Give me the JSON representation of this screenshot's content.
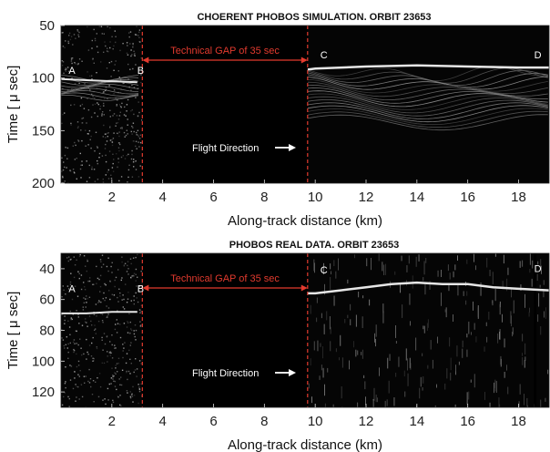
{
  "colors": {
    "gap_marker": "#e23a2e",
    "background_radar": "#050505",
    "echo": "#e6e6e6"
  },
  "chart_data": [
    {
      "type": "heatmap",
      "title": "CHOERENT PHOBOS SIMULATION. ORBIT 23653",
      "xlabel": "Along-track distance (km)",
      "ylabel": "Time [ μ sec]",
      "xlim": [
        0,
        19.2
      ],
      "ylim": [
        200,
        50
      ],
      "x_ticks": [
        2,
        4,
        6,
        8,
        10,
        12,
        14,
        16,
        18
      ],
      "y_ticks": [
        50,
        100,
        150,
        200
      ],
      "gap": {
        "start_km": 3.2,
        "end_km": 9.7,
        "label": "Technical GAP of 35 sec"
      },
      "flight_direction_label": "Flight Direction",
      "points": [
        {
          "label": "A",
          "x": 0.3,
          "y": 96
        },
        {
          "label": "B",
          "x": 3.0,
          "y": 96
        },
        {
          "label": "C",
          "x": 10.2,
          "y": 81
        },
        {
          "label": "D",
          "x": 18.9,
          "y": 81
        }
      ],
      "echo_trace": {
        "x": [
          0,
          1,
          2,
          3,
          9.7,
          10,
          12,
          14,
          16,
          18,
          19.2
        ],
        "y": [
          101,
          102,
          103,
          104,
          92,
          91,
          89,
          88,
          89,
          90,
          90
        ]
      }
    },
    {
      "type": "heatmap",
      "title": "PHOBOS REAL DATA. ORBIT 23653",
      "xlabel": "Along-track distance (km)",
      "ylabel": "Time [ μ sec]",
      "xlim": [
        0,
        19.2
      ],
      "ylim": [
        130,
        30
      ],
      "x_ticks": [
        2,
        4,
        6,
        8,
        10,
        12,
        14,
        16,
        18
      ],
      "y_ticks": [
        40,
        60,
        80,
        100,
        120
      ],
      "gap": {
        "start_km": 3.2,
        "end_km": 9.7,
        "label": "Technical GAP of 35 sec"
      },
      "flight_direction_label": "Flight Direction",
      "points": [
        {
          "label": "A",
          "x": 0.3,
          "y": 55
        },
        {
          "label": "B",
          "x": 3.0,
          "y": 55
        },
        {
          "label": "C",
          "x": 10.2,
          "y": 43
        },
        {
          "label": "D",
          "x": 18.9,
          "y": 42
        }
      ],
      "echo_trace": {
        "x": [
          0,
          1,
          2,
          3,
          9.7,
          10,
          11,
          12,
          13,
          14,
          15,
          16,
          17,
          18,
          19.2
        ],
        "y": [
          69,
          69,
          68,
          68,
          56,
          56,
          54,
          52,
          50,
          49,
          50,
          50,
          52,
          53,
          54
        ]
      }
    }
  ]
}
